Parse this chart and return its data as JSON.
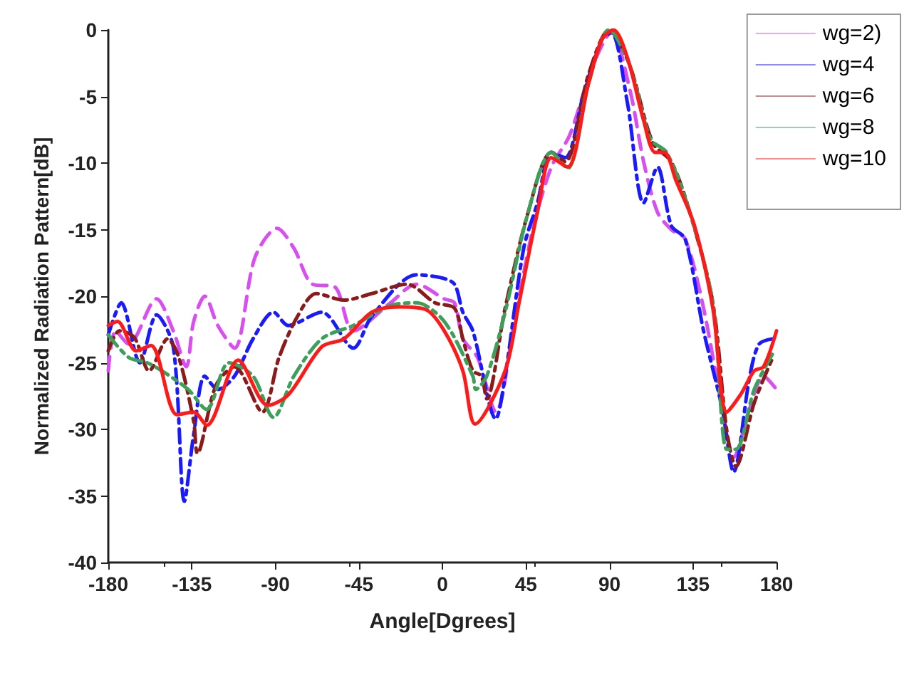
{
  "chart_data": {
    "type": "line",
    "xlabel": "Angle[Dgrees]",
    "ylabel": "Normalized Radiation Pattern[dB]",
    "xlim": [
      -180,
      180
    ],
    "xticks": [
      -180,
      -135,
      -90,
      -45,
      0,
      45,
      90,
      135,
      180
    ],
    "ylim": [
      -40,
      0
    ],
    "yticks": [
      -40,
      -35,
      -30,
      -25,
      -20,
      -15,
      -10,
      -5,
      0
    ],
    "grid": false,
    "legend": "top right",
    "marker": "none",
    "series": [
      {
        "name": "wg=2)",
        "color": "#d94ef0",
        "line_style": "dashed",
        "x": [
          -180,
          -176,
          -169,
          -154,
          -145,
          -138,
          -134,
          -128,
          -121,
          -112,
          -101,
          -89,
          -80,
          -70,
          -58,
          -48,
          -28,
          -14,
          1,
          6.5,
          11,
          18.9,
          28.8,
          38.8,
          48.7,
          58.7,
          68.6,
          81,
          91,
          101,
          108.4,
          115.9,
          123.3,
          130.8,
          140.7,
          150.7,
          156.9,
          165.6,
          173,
          180
        ],
        "values": [
          -25.6,
          -22.6,
          -23.6,
          -20.2,
          -22.6,
          -25.3,
          -21.9,
          -20,
          -22.2,
          -23.9,
          -17.1,
          -14.9,
          -16.4,
          -19.1,
          -19.3,
          -22.6,
          -20.5,
          -19.1,
          -20.2,
          -20.5,
          -23.2,
          -24.6,
          -28.7,
          -21.9,
          -15,
          -10.3,
          -7.9,
          -2.7,
          -0.2,
          -4.5,
          -9.9,
          -13.7,
          -15,
          -15.7,
          -20.9,
          -28.4,
          -32.1,
          -28.4,
          -26,
          -27
        ]
      },
      {
        "name": "wg=4",
        "color": "#1a1aff",
        "line_style": "dashdot",
        "x": [
          -180,
          -173,
          -163,
          -154,
          -145,
          -139,
          -134,
          -128,
          -121,
          -112,
          -102,
          -91,
          -83,
          -65,
          -48,
          -38,
          -14,
          -1,
          6.5,
          11,
          16.4,
          28.8,
          33.8,
          43.8,
          51.2,
          58.7,
          66.1,
          76.1,
          86,
          91,
          99.7,
          108.4,
          115.9,
          123.3,
          130.8,
          140.7,
          150.7,
          156.9,
          165.6,
          170.6,
          178
        ],
        "values": [
          -22.9,
          -20.5,
          -25,
          -21.4,
          -23.8,
          -35.4,
          -30.4,
          -26,
          -27,
          -26,
          -23.2,
          -21.2,
          -22.2,
          -21.2,
          -23.9,
          -21.5,
          -18.4,
          -18.6,
          -19.1,
          -21.2,
          -22.6,
          -29.2,
          -26,
          -16.4,
          -13,
          -9.2,
          -9.6,
          -4.8,
          -0.7,
          -0.2,
          -5.5,
          -13,
          -10.3,
          -14.7,
          -15.7,
          -22.6,
          -28.4,
          -33.2,
          -26,
          -23.6,
          -23.2
        ]
      },
      {
        "name": "wg=6",
        "color": "#8b1a1a",
        "line_style": "dashdot",
        "x": [
          -180,
          -174,
          -166,
          -158,
          -148,
          -142,
          -134,
          -132,
          -122,
          -112,
          -97,
          -88,
          -78,
          -68,
          -53,
          -38,
          -19,
          -4,
          6.5,
          11,
          16.4,
          21,
          23.9,
          33.8,
          46.2,
          58.7,
          66.1,
          78.6,
          89.8,
          101,
          113.4,
          123.3,
          133.3,
          145.7,
          153.2,
          158.1,
          168,
          178
        ],
        "values": [
          -24.1,
          -22.6,
          -23.1,
          -25.6,
          -23.2,
          -24.6,
          -29.4,
          -31.8,
          -26.7,
          -25.3,
          -28.7,
          -24.6,
          -21.5,
          -19.8,
          -20.3,
          -19.8,
          -19.1,
          -20.5,
          -20.9,
          -23.2,
          -25.6,
          -26,
          -27.7,
          -20.9,
          -13.7,
          -9.2,
          -9.9,
          -3.4,
          0,
          -2.7,
          -8.5,
          -9.9,
          -13.7,
          -20.5,
          -30.1,
          -32.8,
          -28,
          -24.6
        ]
      },
      {
        "name": "wg=8",
        "color": "#3aa05a",
        "line_style": "dashdot",
        "x": [
          -180,
          -169,
          -159,
          -149,
          -137,
          -127,
          -115,
          -102,
          -91,
          -80,
          -65,
          -48,
          -28,
          -14,
          1,
          16.4,
          18,
          23.9,
          33.8,
          46.2,
          58.7,
          67.4,
          78.6,
          89.8,
          101,
          112.1,
          120.8,
          133.3,
          145.7,
          153.2,
          158.1,
          168,
          178
        ],
        "values": [
          -22.9,
          -24.6,
          -25,
          -25.8,
          -27,
          -28.5,
          -25,
          -26,
          -29.1,
          -26,
          -23.2,
          -22.2,
          -20.7,
          -20.5,
          -21.9,
          -26,
          -27,
          -26,
          -21.2,
          -13.7,
          -9.2,
          -10.4,
          -4.1,
          0,
          -2.7,
          -8.2,
          -9.2,
          -13.7,
          -20.5,
          -31.5,
          -31.5,
          -27,
          -24.3
        ]
      },
      {
        "name": "wg=10",
        "color": "#ff1a1a",
        "line_style": "solid",
        "x": [
          -180,
          -175,
          -165,
          -157,
          -143,
          -134,
          -127,
          -110,
          -94,
          -83,
          -65,
          -53,
          -38,
          -23,
          -9,
          1,
          11,
          17.6,
          33.8,
          41.3,
          51.2,
          58.7,
          67.4,
          78.6,
          86,
          92.2,
          99.7,
          108.4,
          114.6,
          119.6,
          125.8,
          135.8,
          145.7,
          153.2,
          160.6,
          168,
          173,
          180
        ],
        "values": [
          -22.2,
          -21.9,
          -24.1,
          -23.7,
          -28.9,
          -28.7,
          -29.7,
          -24.8,
          -28.2,
          -27.4,
          -23.8,
          -23.2,
          -21.2,
          -20.8,
          -21,
          -22.6,
          -25.6,
          -29.6,
          -25.6,
          -20.5,
          -13.7,
          -9.6,
          -10.3,
          -4.1,
          -0.7,
          0,
          -2.1,
          -6.8,
          -9.2,
          -9.2,
          -11.3,
          -14.7,
          -20.9,
          -28.7,
          -27.4,
          -25.6,
          -25.3,
          -22.6
        ]
      }
    ]
  }
}
